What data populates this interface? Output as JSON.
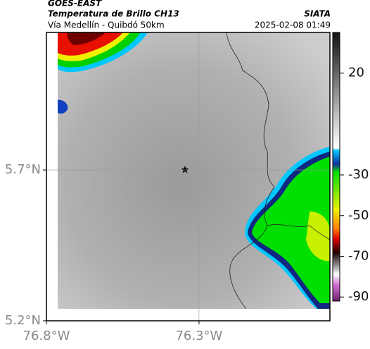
{
  "header": {
    "title": "GOES-EAST",
    "subtitle": "Temperatura de Brillo CH13",
    "source": "SIATA",
    "route": "Vía Medellín - Quibdó 50km",
    "timestamp": "2025-02-08 01:49"
  },
  "map": {
    "xlim": [
      -76.8,
      -75.871
    ],
    "ylim": [
      5.2,
      6.156
    ],
    "xticks": [
      {
        "value": -76.8,
        "label": "76.8°W"
      },
      {
        "value": -76.3,
        "label": "76.3°W"
      }
    ],
    "yticks": [
      {
        "value": 5.2,
        "label": "5.2°N"
      },
      {
        "value": 5.7,
        "label": "5.7°N"
      }
    ],
    "grid": true
  },
  "colorbar": {
    "clim": [
      -92,
      40
    ],
    "ticks": [
      20,
      -30,
      -50,
      -70,
      -90
    ]
  }
}
